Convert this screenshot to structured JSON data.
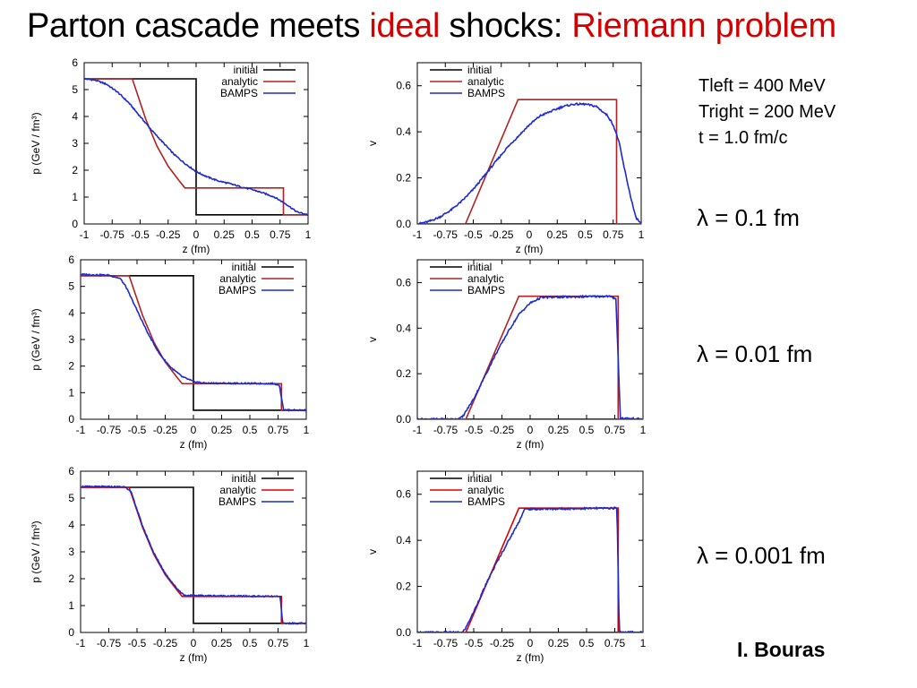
{
  "title": {
    "part1": "Parton cascade meets",
    "part2": "ideal",
    "part3": "shocks:",
    "part4": "Riemann problem"
  },
  "colors": {
    "initial": "#000000",
    "analytic": "#b22222",
    "analytic_bottom": "#e00000",
    "bamps": "#1c2ad0",
    "title_red": "#d40000"
  },
  "params": {
    "line1": "Tleft = 400 MeV",
    "line2": "Tright = 200 MeV",
    "line3": "t = 1.0 fm/c"
  },
  "lambdas": [
    "λ = 0.1 fm",
    "λ = 0.01 fm",
    "λ = 0.001 fm"
  ],
  "author": "I. Bouras",
  "chart_data": [
    {
      "type": "line",
      "quantity": "p",
      "xlabel": "z (fm)",
      "ylabel": "p (GeV / fm³)",
      "xlim": [
        -1,
        1
      ],
      "ylim": [
        0,
        6
      ],
      "xticks": [
        "-1",
        "-0.75",
        "-0.5",
        "-0.25",
        "0",
        "0.25",
        "0.5",
        "0.75",
        "1"
      ],
      "yticks": [
        "0",
        "1",
        "2",
        "3",
        "4",
        "5",
        "6"
      ],
      "legend": "top-right",
      "series": [
        {
          "name": "initial",
          "x": [
            -1,
            0,
            0,
            1
          ],
          "y": [
            5.4,
            5.4,
            0.34,
            0.34
          ]
        },
        {
          "name": "analytic",
          "x": [
            -1,
            -0.57,
            -0.45,
            -0.35,
            -0.25,
            -0.15,
            -0.1,
            0.78,
            0.78,
            1
          ],
          "y": [
            5.4,
            5.4,
            3.9,
            2.9,
            2.15,
            1.6,
            1.34,
            1.34,
            0.34,
            0.34
          ]
        },
        {
          "name": "BAMPS",
          "x": [
            -1,
            -0.9,
            -0.8,
            -0.7,
            -0.6,
            -0.5,
            -0.4,
            -0.3,
            -0.2,
            -0.1,
            0,
            0.1,
            0.2,
            0.3,
            0.4,
            0.5,
            0.6,
            0.7,
            0.8,
            0.9,
            1
          ],
          "y": [
            5.4,
            5.35,
            5.2,
            4.9,
            4.5,
            4.0,
            3.5,
            3.05,
            2.6,
            2.25,
            1.95,
            1.75,
            1.6,
            1.5,
            1.38,
            1.28,
            1.15,
            1.0,
            0.75,
            0.45,
            0.34
          ]
        }
      ]
    },
    {
      "type": "line",
      "quantity": "v",
      "xlabel": "z (fm)",
      "ylabel": "v",
      "xlim": [
        -1,
        1
      ],
      "ylim": [
        0,
        0.7
      ],
      "xticks": [
        "-1",
        "-0.75",
        "-0.5",
        "-0.25",
        "0",
        "0.25",
        "0.5",
        "0.75",
        "1"
      ],
      "yticks": [
        "0.0",
        "0.2",
        "0.4",
        "0.6"
      ],
      "legend": "top-left",
      "series": [
        {
          "name": "initial",
          "x": [
            -1,
            1
          ],
          "y": [
            0,
            0
          ]
        },
        {
          "name": "analytic",
          "x": [
            -1,
            -0.57,
            -0.1,
            0.78,
            0.78,
            1
          ],
          "y": [
            0,
            0,
            0.54,
            0.54,
            0,
            0
          ]
        },
        {
          "name": "BAMPS",
          "x": [
            -1,
            -0.9,
            -0.8,
            -0.7,
            -0.6,
            -0.5,
            -0.4,
            -0.3,
            -0.2,
            -0.1,
            0,
            0.1,
            0.2,
            0.3,
            0.4,
            0.5,
            0.6,
            0.7,
            0.75,
            0.8,
            0.85,
            0.9,
            0.95,
            1
          ],
          "y": [
            0,
            0.01,
            0.03,
            0.06,
            0.1,
            0.15,
            0.21,
            0.27,
            0.33,
            0.38,
            0.43,
            0.47,
            0.49,
            0.51,
            0.52,
            0.52,
            0.51,
            0.47,
            0.43,
            0.36,
            0.24,
            0.13,
            0.03,
            0
          ]
        }
      ]
    },
    {
      "type": "line",
      "quantity": "p",
      "xlabel": "z (fm)",
      "ylabel": "p (GeV / fm³)",
      "xlim": [
        -1,
        1
      ],
      "ylim": [
        0,
        6
      ],
      "xticks": [
        "-1",
        "-0.75",
        "-0.5",
        "-0.25",
        "0",
        "0.25",
        "0.5",
        "0.75",
        "1"
      ],
      "yticks": [
        "0",
        "1",
        "2",
        "3",
        "4",
        "5",
        "6"
      ],
      "legend": "top-right",
      "series": [
        {
          "name": "initial",
          "x": [
            -1,
            0,
            0,
            1
          ],
          "y": [
            5.4,
            5.4,
            0.34,
            0.34
          ]
        },
        {
          "name": "analytic",
          "x": [
            -1,
            -0.57,
            -0.45,
            -0.35,
            -0.25,
            -0.15,
            -0.1,
            0.78,
            0.78,
            1
          ],
          "y": [
            5.4,
            5.4,
            3.9,
            2.9,
            2.15,
            1.6,
            1.34,
            1.34,
            0.34,
            0.34
          ]
        },
        {
          "name": "BAMPS",
          "x": [
            -1,
            -0.75,
            -0.65,
            -0.6,
            -0.5,
            -0.4,
            -0.3,
            -0.2,
            -0.1,
            0,
            0.1,
            0.7,
            0.76,
            0.8,
            1
          ],
          "y": [
            5.45,
            5.42,
            5.3,
            5.0,
            4.1,
            3.2,
            2.45,
            1.95,
            1.6,
            1.42,
            1.36,
            1.34,
            1.3,
            0.35,
            0.34
          ]
        }
      ]
    },
    {
      "type": "line",
      "quantity": "v",
      "xlabel": "z (fm)",
      "ylabel": "v",
      "xlim": [
        -1,
        1
      ],
      "ylim": [
        0,
        0.7
      ],
      "xticks": [
        "-1",
        "-0.75",
        "-0.5",
        "-0.25",
        "0",
        "0.25",
        "0.5",
        "0.75",
        "1"
      ],
      "yticks": [
        "0.0",
        "0.2",
        "0.4",
        "0.6"
      ],
      "legend": "top-left",
      "series": [
        {
          "name": "initial",
          "x": [
            -1,
            1
          ],
          "y": [
            0,
            0
          ]
        },
        {
          "name": "analytic",
          "x": [
            -1,
            -0.57,
            -0.1,
            0.78,
            0.78,
            1
          ],
          "y": [
            0,
            0,
            0.54,
            0.54,
            0,
            0
          ]
        },
        {
          "name": "BAMPS",
          "x": [
            -1,
            -0.65,
            -0.6,
            -0.5,
            -0.4,
            -0.3,
            -0.2,
            -0.1,
            0,
            0.1,
            0.7,
            0.76,
            0.8,
            1
          ],
          "y": [
            0,
            0,
            0.01,
            0.09,
            0.19,
            0.29,
            0.38,
            0.46,
            0.51,
            0.535,
            0.54,
            0.53,
            0.005,
            0
          ]
        }
      ]
    },
    {
      "type": "line",
      "quantity": "p",
      "xlabel": "z (fm)",
      "ylabel": "p (GeV / fm³)",
      "xlim": [
        -1,
        1
      ],
      "ylim": [
        0,
        6
      ],
      "xticks": [
        "-1",
        "-0.75",
        "-0.5",
        "-0.25",
        "0",
        "0.25",
        "0.5",
        "0.75",
        "1"
      ],
      "yticks": [
        "0",
        "1",
        "2",
        "3",
        "4",
        "5",
        "6"
      ],
      "legend": "top-right",
      "series": [
        {
          "name": "initial",
          "x": [
            -1,
            0,
            0,
            1
          ],
          "y": [
            5.4,
            5.4,
            0.34,
            0.34
          ]
        },
        {
          "name": "analytic",
          "x": [
            -1,
            -0.57,
            -0.45,
            -0.35,
            -0.25,
            -0.15,
            -0.1,
            0.78,
            0.78,
            1
          ],
          "y": [
            5.4,
            5.4,
            3.9,
            2.9,
            2.15,
            1.6,
            1.34,
            1.34,
            0.34,
            0.34
          ]
        },
        {
          "name": "BAMPS",
          "x": [
            -1,
            -0.6,
            -0.55,
            -0.45,
            -0.35,
            -0.25,
            -0.15,
            -0.08,
            0.7,
            0.77,
            0.79,
            1
          ],
          "y": [
            5.43,
            5.42,
            5.2,
            3.95,
            2.95,
            2.2,
            1.65,
            1.38,
            1.34,
            1.33,
            0.34,
            0.34
          ]
        }
      ]
    },
    {
      "type": "line",
      "quantity": "v",
      "xlabel": "z (fm)",
      "ylabel": "v",
      "xlim": [
        -1,
        1
      ],
      "ylim": [
        0,
        0.7
      ],
      "xticks": [
        "-1",
        "-0.75",
        "-0.5",
        "-0.25",
        "0",
        "0.25",
        "0.5",
        "0.75",
        "1"
      ],
      "yticks": [
        "0.0",
        "0.2",
        "0.4",
        "0.6"
      ],
      "legend": "top-left",
      "series": [
        {
          "name": "initial",
          "x": [
            -1,
            1
          ],
          "y": [
            0,
            0
          ]
        },
        {
          "name": "analytic",
          "x": [
            -1,
            -0.57,
            -0.1,
            0.78,
            0.78,
            1
          ],
          "y": [
            0,
            0,
            0.54,
            0.54,
            0,
            0
          ]
        },
        {
          "name": "BAMPS",
          "x": [
            -1,
            -0.6,
            -0.57,
            -0.5,
            -0.4,
            -0.3,
            -0.2,
            -0.1,
            -0.05,
            0.77,
            0.79,
            1
          ],
          "y": [
            0,
            0,
            0.02,
            0.09,
            0.2,
            0.3,
            0.39,
            0.48,
            0.535,
            0.54,
            0.003,
            0
          ]
        }
      ]
    }
  ]
}
